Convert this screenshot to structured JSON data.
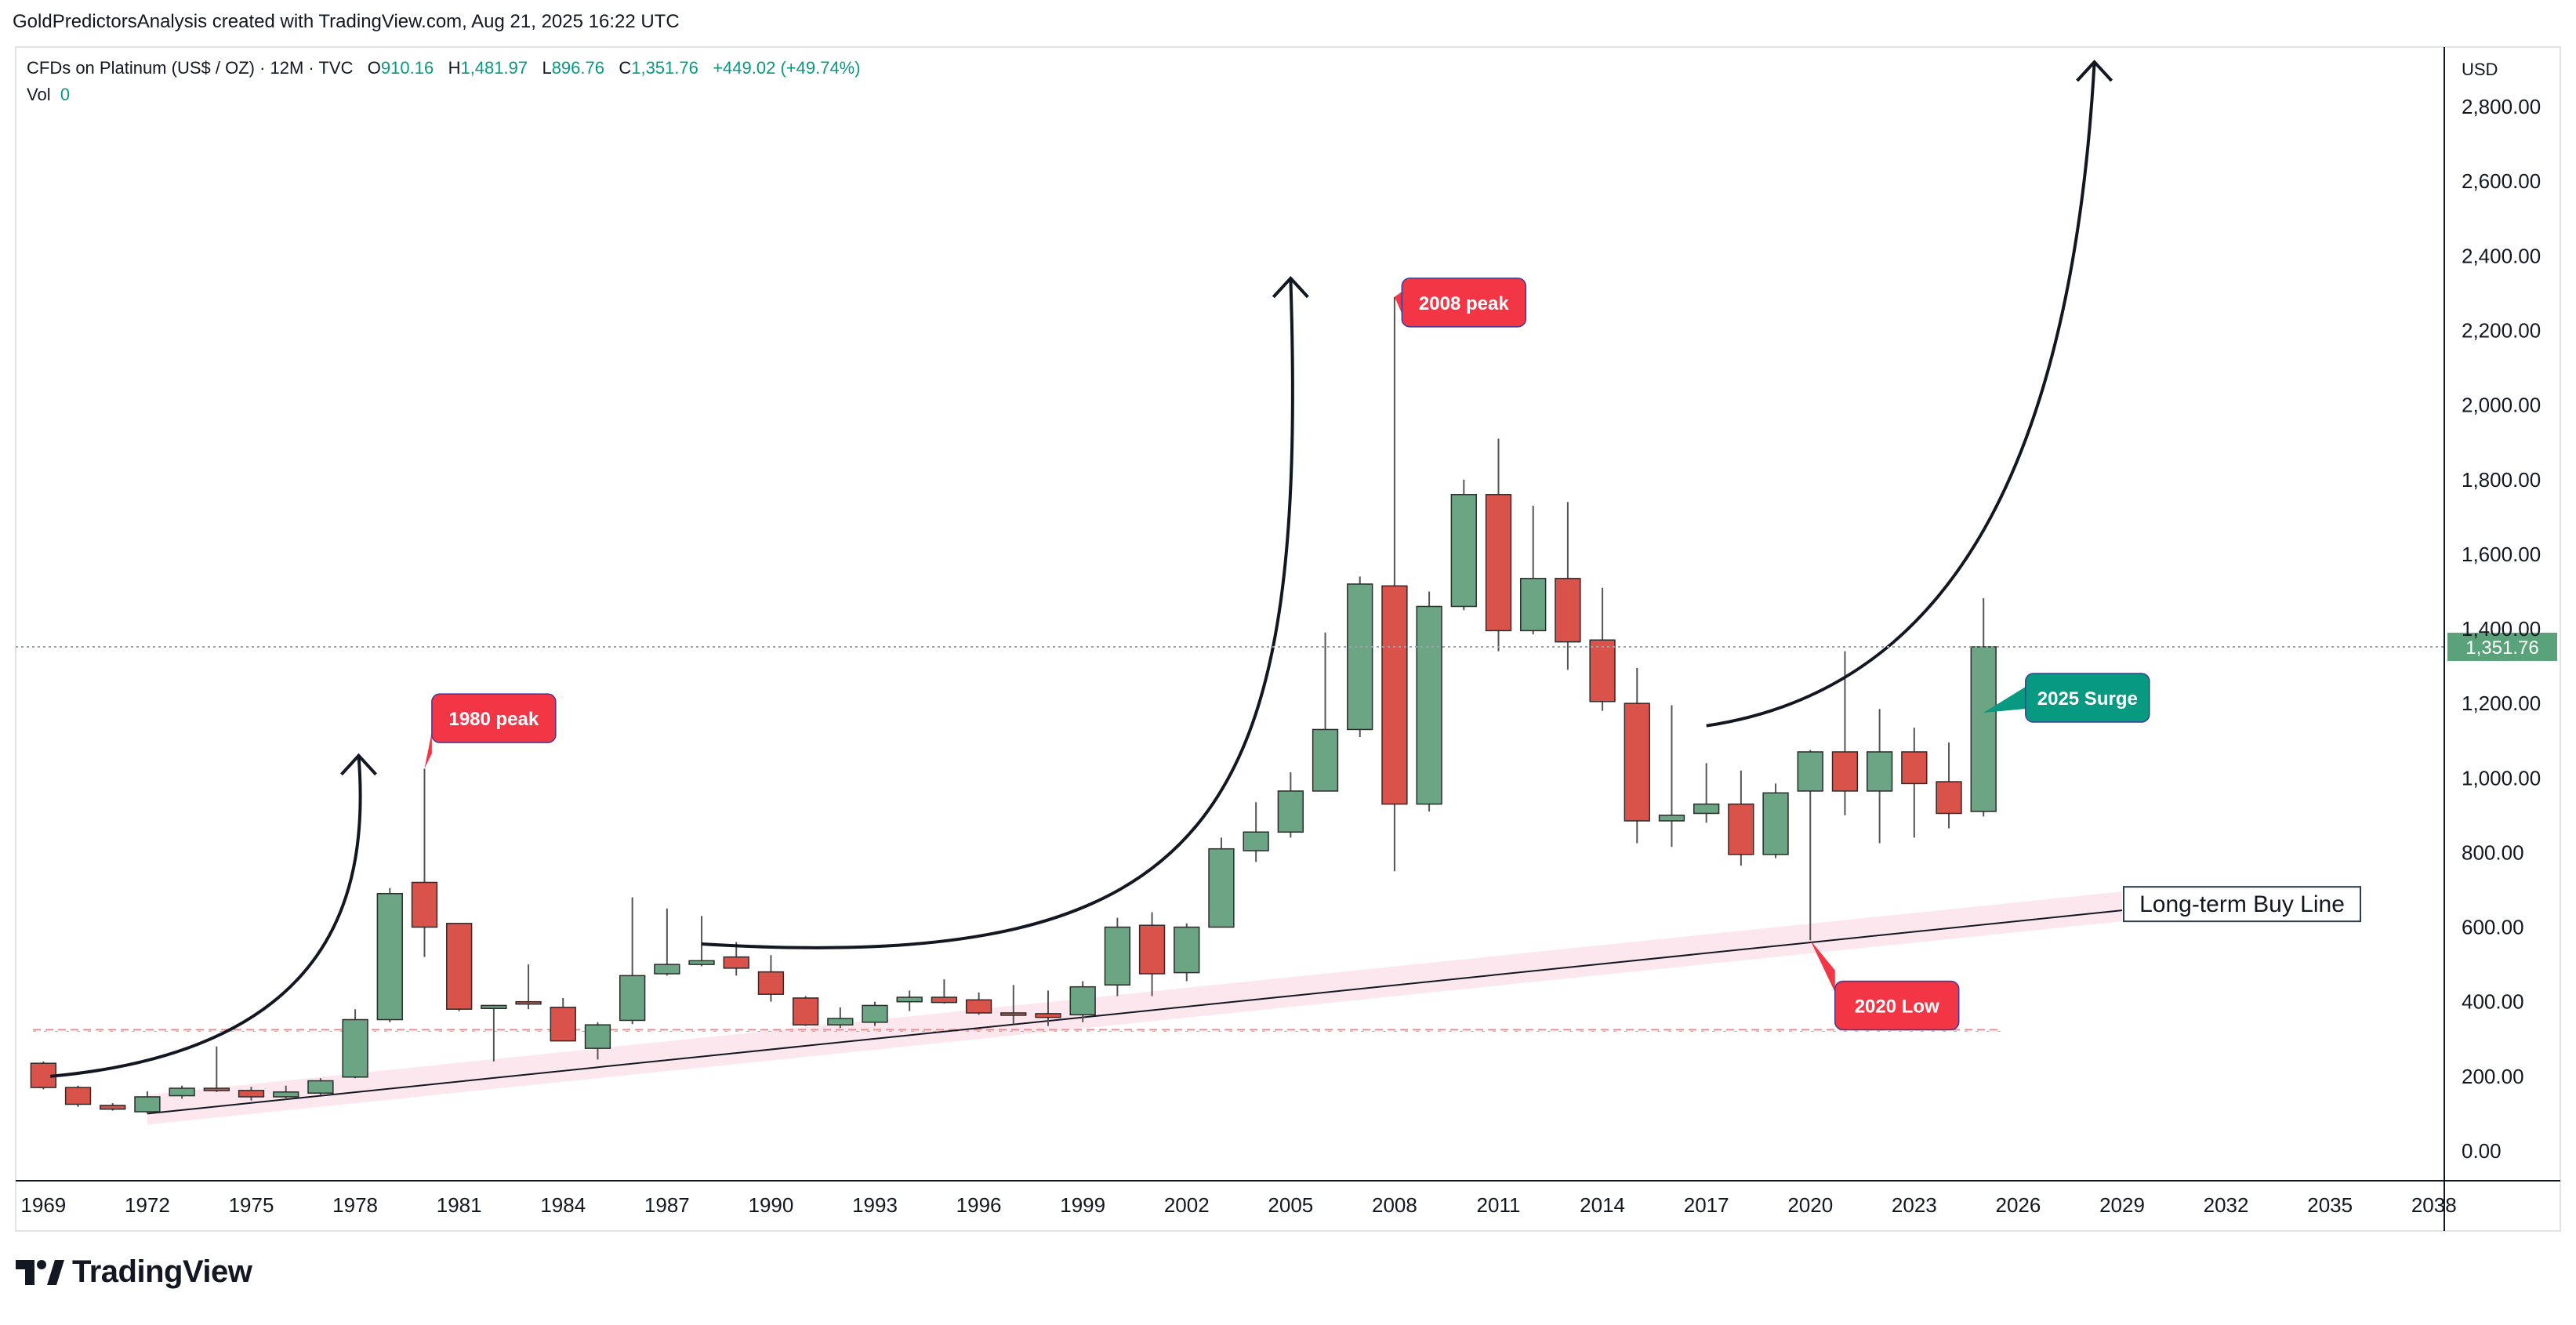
{
  "header": {
    "attribution": "GoldPredictorsAnalysis created with TradingView.com, Aug 21, 2025 16:22 UTC"
  },
  "legend": {
    "symbol": "CFDs on Platinum (US$ / OZ) · 12M · TVC",
    "open_label": "O",
    "open": "910.16",
    "high_label": "H",
    "high": "1,481.97",
    "low_label": "L",
    "low": "896.76",
    "close_label": "C",
    "close": "1,351.76",
    "change": "+449.02 (+49.74%)",
    "vol_label": "Vol",
    "vol": "0"
  },
  "footer": {
    "brand": "TradingView"
  },
  "colors": {
    "up": "#6ba583",
    "down": "#d9534a",
    "trend_band": "#fde4ec",
    "price_tag": "#5aa37a",
    "callout_red": "#f23645",
    "callout_teal": "#089981"
  },
  "chart_data": {
    "type": "candlestick",
    "currency_label": "USD",
    "current_price_label": "1,351.76",
    "current_price": 1351.76,
    "ylim": [
      -80,
      2960
    ],
    "y_ticks": [
      0,
      200,
      400,
      600,
      800,
      1000,
      1200,
      1400,
      1600,
      1800,
      2000,
      2200,
      2400,
      2600,
      2800
    ],
    "y_tick_labels": [
      "0.00",
      "200.00",
      "400.00",
      "600.00",
      "800.00",
      "1,000.00",
      "1,200.00",
      "1,400.00",
      "1,600.00",
      "1,800.00",
      "2,000.00",
      "2,200.00",
      "2,400.00",
      "2,600.00",
      "2,800.00"
    ],
    "xlim": [
      1968.2,
      2038.3
    ],
    "x_ticks": [
      1969,
      1972,
      1975,
      1978,
      1981,
      1984,
      1987,
      1990,
      1993,
      1996,
      1999,
      2002,
      2005,
      2008,
      2011,
      2014,
      2017,
      2020,
      2023,
      2026,
      2029,
      2032,
      2035,
      2038
    ],
    "x_tick_labels": [
      "1969",
      "1972",
      "1975",
      "1978",
      "1981",
      "1984",
      "1987",
      "1990",
      "1993",
      "1996",
      "1999",
      "2002",
      "2005",
      "2008",
      "2011",
      "2014",
      "2017",
      "2020",
      "2023",
      "2026",
      "2029",
      "2032",
      "2035",
      "2038"
    ],
    "candles": [
      {
        "year": 1969,
        "open": 235,
        "high": 240,
        "low": 165,
        "close": 170
      },
      {
        "year": 1970,
        "open": 170,
        "high": 175,
        "low": 118,
        "close": 125
      },
      {
        "year": 1971,
        "open": 122,
        "high": 128,
        "low": 108,
        "close": 112
      },
      {
        "year": 1972,
        "open": 105,
        "high": 160,
        "low": 100,
        "close": 145
      },
      {
        "year": 1973,
        "open": 148,
        "high": 175,
        "low": 140,
        "close": 168
      },
      {
        "year": 1974,
        "open": 168,
        "high": 280,
        "low": 158,
        "close": 162
      },
      {
        "year": 1975,
        "open": 162,
        "high": 172,
        "low": 135,
        "close": 145
      },
      {
        "year": 1976,
        "open": 145,
        "high": 175,
        "low": 138,
        "close": 158
      },
      {
        "year": 1977,
        "open": 155,
        "high": 195,
        "low": 150,
        "close": 188
      },
      {
        "year": 1978,
        "open": 198,
        "high": 380,
        "low": 195,
        "close": 352
      },
      {
        "year": 1979,
        "open": 352,
        "high": 705,
        "low": 345,
        "close": 690
      },
      {
        "year": 1980,
        "open": 720,
        "high": 1025,
        "low": 520,
        "close": 600
      },
      {
        "year": 1981,
        "open": 610,
        "high": 610,
        "low": 375,
        "close": 380
      },
      {
        "year": 1982,
        "open": 382,
        "high": 392,
        "low": 240,
        "close": 390
      },
      {
        "year": 1983,
        "open": 400,
        "high": 500,
        "low": 380,
        "close": 395
      },
      {
        "year": 1984,
        "open": 385,
        "high": 410,
        "low": 295,
        "close": 295
      },
      {
        "year": 1985,
        "open": 275,
        "high": 345,
        "low": 245,
        "close": 338
      },
      {
        "year": 1986,
        "open": 350,
        "high": 680,
        "low": 340,
        "close": 470
      },
      {
        "year": 1987,
        "open": 475,
        "high": 650,
        "low": 470,
        "close": 500
      },
      {
        "year": 1988,
        "open": 500,
        "high": 630,
        "low": 495,
        "close": 510
      },
      {
        "year": 1989,
        "open": 520,
        "high": 560,
        "low": 470,
        "close": 490
      },
      {
        "year": 1990,
        "open": 480,
        "high": 525,
        "low": 400,
        "close": 420
      },
      {
        "year": 1991,
        "open": 410,
        "high": 415,
        "low": 335,
        "close": 338
      },
      {
        "year": 1992,
        "open": 338,
        "high": 385,
        "low": 330,
        "close": 355
      },
      {
        "year": 1993,
        "open": 345,
        "high": 400,
        "low": 335,
        "close": 390
      },
      {
        "year": 1994,
        "open": 400,
        "high": 430,
        "low": 375,
        "close": 412
      },
      {
        "year": 1995,
        "open": 412,
        "high": 460,
        "low": 395,
        "close": 398
      },
      {
        "year": 1996,
        "open": 405,
        "high": 425,
        "low": 365,
        "close": 370
      },
      {
        "year": 1997,
        "open": 370,
        "high": 445,
        "low": 340,
        "close": 368
      },
      {
        "year": 1998,
        "open": 368,
        "high": 430,
        "low": 335,
        "close": 358
      },
      {
        "year": 1999,
        "open": 365,
        "high": 455,
        "low": 345,
        "close": 440
      },
      {
        "year": 2000,
        "open": 445,
        "high": 625,
        "low": 415,
        "close": 600
      },
      {
        "year": 2001,
        "open": 605,
        "high": 640,
        "low": 415,
        "close": 475
      },
      {
        "year": 2002,
        "open": 478,
        "high": 610,
        "low": 455,
        "close": 600
      },
      {
        "year": 2003,
        "open": 600,
        "high": 840,
        "low": 600,
        "close": 810
      },
      {
        "year": 2004,
        "open": 805,
        "high": 935,
        "low": 775,
        "close": 855
      },
      {
        "year": 2005,
        "open": 855,
        "high": 1015,
        "low": 840,
        "close": 965
      },
      {
        "year": 2006,
        "open": 965,
        "high": 1390,
        "low": 965,
        "close": 1130
      },
      {
        "year": 2007,
        "open": 1130,
        "high": 1540,
        "low": 1110,
        "close": 1520
      },
      {
        "year": 2008,
        "open": 1515,
        "high": 2290,
        "low": 750,
        "close": 930
      },
      {
        "year": 2009,
        "open": 930,
        "high": 1500,
        "low": 910,
        "close": 1460
      },
      {
        "year": 2010,
        "open": 1460,
        "high": 1800,
        "low": 1450,
        "close": 1760
      },
      {
        "year": 2011,
        "open": 1760,
        "high": 1910,
        "low": 1340,
        "close": 1395
      },
      {
        "year": 2012,
        "open": 1395,
        "high": 1730,
        "low": 1385,
        "close": 1535
      },
      {
        "year": 2013,
        "open": 1535,
        "high": 1740,
        "low": 1290,
        "close": 1365
      },
      {
        "year": 2014,
        "open": 1370,
        "high": 1510,
        "low": 1180,
        "close": 1205
      },
      {
        "year": 2015,
        "open": 1200,
        "high": 1295,
        "low": 825,
        "close": 885
      },
      {
        "year": 2016,
        "open": 885,
        "high": 1195,
        "low": 815,
        "close": 900
      },
      {
        "year": 2017,
        "open": 905,
        "high": 1040,
        "low": 880,
        "close": 930
      },
      {
        "year": 2018,
        "open": 930,
        "high": 1020,
        "low": 765,
        "close": 795
      },
      {
        "year": 2019,
        "open": 795,
        "high": 985,
        "low": 785,
        "close": 960
      },
      {
        "year": 2020,
        "open": 965,
        "high": 1075,
        "low": 565,
        "close": 1070
      },
      {
        "year": 2021,
        "open": 1070,
        "high": 1340,
        "low": 900,
        "close": 965
      },
      {
        "year": 2022,
        "open": 965,
        "high": 1185,
        "low": 825,
        "close": 1070
      },
      {
        "year": 2023,
        "open": 1070,
        "high": 1135,
        "low": 840,
        "close": 985
      },
      {
        "year": 2024,
        "open": 990,
        "high": 1095,
        "low": 865,
        "close": 905
      },
      {
        "year": 2025,
        "open": 910.16,
        "high": 1481.97,
        "low": 896.76,
        "close": 1351.76
      }
    ],
    "trend_line": {
      "x1": 1972,
      "y1": 100,
      "x2": 2029,
      "y2": 645,
      "label": "Long-term Buy Line"
    },
    "horizontal_level": {
      "y": 325,
      "x1": 1968.7,
      "x2": 2025.5
    },
    "callouts": [
      {
        "label": "1980 peak",
        "year": 1980,
        "price": 1025,
        "box_year": 1982.0,
        "box_price": 1160,
        "color": "red"
      },
      {
        "label": "2008 peak",
        "year": 2008,
        "price": 2290,
        "box_year": 2010.0,
        "box_price": 2275,
        "color": "red"
      },
      {
        "label": "2020 Low",
        "year": 2020,
        "price": 565,
        "box_year": 2022.5,
        "box_price": 390,
        "color": "red"
      },
      {
        "label": "2025 Surge",
        "year": 2025,
        "price": 1175,
        "box_year": 2028.0,
        "box_price": 1215,
        "color": "teal"
      }
    ],
    "arrows": [
      {
        "points": [
          [
            1969.2,
            200
          ],
          [
            1977.5,
            270
          ],
          [
            1978.4,
            700
          ],
          [
            1978.1,
            1060
          ]
        ]
      },
      {
        "points": [
          [
            1988.0,
            555
          ],
          [
            2003.0,
            470
          ],
          [
            2005.5,
            900
          ],
          [
            2005.0,
            2340
          ]
        ]
      },
      {
        "points": [
          [
            2017.0,
            1140
          ],
          [
            2023.5,
            1230
          ],
          [
            2027.5,
            1760
          ],
          [
            2028.2,
            2920
          ]
        ]
      }
    ]
  }
}
